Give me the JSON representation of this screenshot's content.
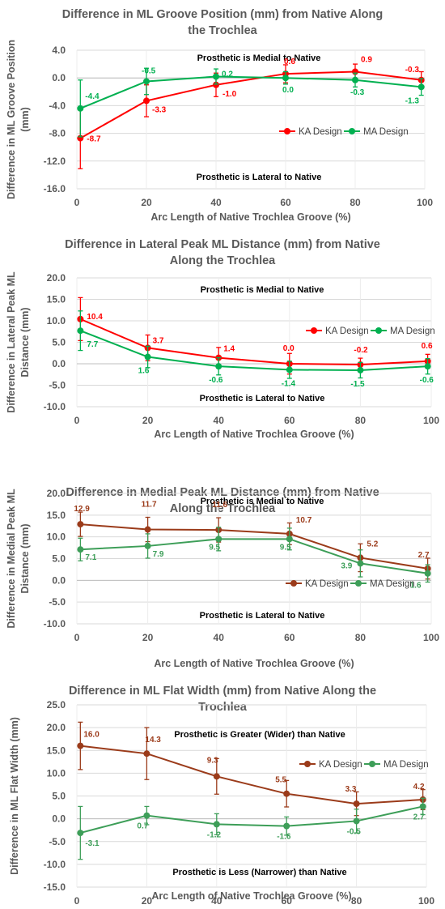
{
  "chart_data": [
    {
      "type": "line",
      "title": [
        "Difference in ML Groove Position (mm) from Native Along",
        "the Trochlea"
      ],
      "xlabel": "Arc Length of Native Trochlea Groove (%)",
      "ylabel": [
        "Difference in ML Groove Position",
        "(mm)"
      ],
      "ylim": [
        -16,
        4
      ],
      "yticks": [
        4,
        0,
        -4,
        -8,
        -12,
        -16
      ],
      "yticklabels": [
        "4.0",
        "0.0",
        "-4.0",
        "-8.0",
        "-12.0",
        "-16.0"
      ],
      "xlim": [
        0,
        100
      ],
      "xticks": [
        0,
        20,
        40,
        60,
        80,
        100
      ],
      "grid": true,
      "legend_position": "right",
      "annotations": [
        "Prosthetic is Medial to Native",
        "Prosthetic is Lateral to Native"
      ],
      "series": [
        {
          "name": "KA Design",
          "color": "#ff0000",
          "x": [
            1,
            20,
            40,
            60,
            80,
            99
          ],
          "values": [
            -8.7,
            -3.3,
            -1.0,
            0.6,
            0.9,
            -0.3
          ],
          "errors": [
            4.4,
            2.3,
            1.7,
            1.3,
            1.1,
            1.2
          ],
          "labels": [
            "-8.7",
            "-3.3",
            "-1.0",
            "0.6",
            "0.9",
            "-0.3"
          ]
        },
        {
          "name": "MA Design",
          "color": "#00b050",
          "x": [
            1,
            20,
            40,
            60,
            80,
            99
          ],
          "values": [
            -4.4,
            -0.5,
            0.2,
            0.0,
            -0.3,
            -1.3
          ],
          "errors": [
            4.1,
            1.9,
            1.1,
            0.9,
            1.0,
            1.2
          ],
          "labels": [
            "-4.4",
            "-0.5",
            "0.2",
            "0.0",
            "-0.3",
            "-1.3"
          ]
        }
      ]
    },
    {
      "type": "line",
      "title": [
        "Difference in Lateral Peak ML Distance (mm) from Native",
        "Along the Trochlea"
      ],
      "xlabel": "Arc Length of Native Trochlea Groove (%)",
      "ylabel": [
        "Difference in Lateral Peak ML",
        "Distance (mm)"
      ],
      "ylim": [
        -10,
        20
      ],
      "yticks": [
        20,
        15,
        10,
        5,
        0,
        -5,
        -10
      ],
      "yticklabels": [
        "20.0",
        "15.0",
        "10.0",
        "5.0",
        "0.0",
        "-5.0",
        "-10.0"
      ],
      "xlim": [
        0,
        100
      ],
      "xticks": [
        0,
        20,
        40,
        60,
        80,
        100
      ],
      "grid": true,
      "legend_position": "right",
      "annotations": [
        "Prosthetic is Medial to Native",
        "Prosthetic is Lateral to Native"
      ],
      "series": [
        {
          "name": "KA Design",
          "color": "#ff0000",
          "x": [
            1,
            20,
            40,
            60,
            80,
            99
          ],
          "values": [
            10.4,
            3.7,
            1.4,
            0.0,
            -0.2,
            0.6
          ],
          "errors": [
            5.0,
            3.0,
            2.4,
            2.4,
            1.5,
            1.6
          ],
          "labels": [
            "10.4",
            "3.7",
            "1.4",
            "0.0",
            "-0.2",
            "0.6"
          ]
        },
        {
          "name": "MA Design",
          "color": "#00b050",
          "x": [
            1,
            20,
            40,
            60,
            80,
            99
          ],
          "values": [
            7.7,
            1.6,
            -0.6,
            -1.4,
            -1.5,
            -0.6
          ],
          "errors": [
            4.6,
            2.5,
            2.0,
            2.0,
            1.8,
            1.8
          ],
          "labels": [
            "7.7",
            "1.6",
            "-0.6",
            "-1.4",
            "-1.5",
            "-0.6"
          ]
        }
      ]
    },
    {
      "type": "line",
      "title": [
        "Difference in Medial Peak ML Distance (mm) from Native",
        "Along the Trochlea"
      ],
      "xlabel": "Arc Length of Native Trochlea Groove (%)",
      "ylabel": [
        "Difference in Medial Peak ML",
        "Distance (mm)"
      ],
      "ylim": [
        -10,
        20
      ],
      "yticks": [
        20,
        15,
        10,
        5,
        0,
        -5,
        -10
      ],
      "yticklabels": [
        "20.0",
        "15.0",
        "10.0",
        "5.0",
        "0.0",
        "-5.0",
        "-10.0"
      ],
      "xlim": [
        0,
        100
      ],
      "xticks": [
        0,
        20,
        40,
        60,
        80,
        100
      ],
      "grid": true,
      "legend_position": "bottom-right",
      "annotations": [
        "Prosthetic is Medial to Native",
        "Prosthetic is Lateral to Native"
      ],
      "series": [
        {
          "name": "KA Design",
          "color": "#9b3b1a",
          "x": [
            1,
            20,
            40,
            60,
            80,
            99
          ],
          "values": [
            12.9,
            11.7,
            11.6,
            10.7,
            5.2,
            2.7
          ],
          "errors": [
            2.8,
            2.8,
            2.8,
            2.5,
            3.2,
            2.4
          ],
          "labels": [
            "12.9",
            "11.7",
            "11.6",
            "10.7",
            "5.2",
            "2.7"
          ]
        },
        {
          "name": "MA Design",
          "color": "#3d9e58",
          "x": [
            1,
            20,
            40,
            60,
            80,
            99
          ],
          "values": [
            7.1,
            7.9,
            9.5,
            9.5,
            3.9,
            1.6
          ],
          "errors": [
            2.6,
            2.8,
            2.7,
            2.5,
            3.1,
            2.0
          ],
          "labels": [
            "7.1",
            "7.9",
            "9.5",
            "9.5",
            "3.9",
            "1.6"
          ]
        }
      ]
    },
    {
      "type": "line",
      "title": [
        "Difference in ML Flat Width (mm) from Native Along the",
        "Trochlea"
      ],
      "xlabel": "Arc Length of Native Trochlea Groove (%)",
      "ylabel": [
        "Difference in ML Flat Width (mm)"
      ],
      "ylim": [
        -15,
        25
      ],
      "yticks": [
        25,
        20,
        15,
        10,
        5,
        0,
        -5,
        -10,
        -15
      ],
      "yticklabels": [
        "25.0",
        "20.0",
        "15.0",
        "10.0",
        "5.0",
        "0.0",
        "-5.0",
        "-10.0",
        "-15.0"
      ],
      "xlim": [
        0,
        100
      ],
      "xticks": [
        0,
        20,
        40,
        60,
        80,
        100
      ],
      "grid": true,
      "legend_position": "top-right",
      "annotations": [
        "Prosthetic is Greater (Wider) than Native",
        "Prosthetic is Less (Narrower) than Native"
      ],
      "series": [
        {
          "name": "KA Design",
          "color": "#9b3b1a",
          "x": [
            1,
            20,
            40,
            60,
            80,
            99
          ],
          "values": [
            16.0,
            14.3,
            9.3,
            5.5,
            3.3,
            4.2
          ],
          "errors": [
            5.2,
            5.7,
            3.9,
            2.9,
            2.6,
            2.2
          ],
          "labels": [
            "16.0",
            "14.3",
            "9.3",
            "5.5",
            "3.3",
            "4.2"
          ]
        },
        {
          "name": "MA Design",
          "color": "#3d9e58",
          "x": [
            1,
            20,
            40,
            60,
            80,
            99
          ],
          "values": [
            -3.1,
            0.7,
            -1.2,
            -1.6,
            -0.5,
            2.7
          ],
          "errors": [
            5.8,
            2.0,
            2.3,
            2.0,
            2.6,
            1.8
          ],
          "labels": [
            "-3.1",
            "0.7",
            "-1.2",
            "-1.6",
            "-0.5",
            "2.7"
          ]
        }
      ]
    }
  ]
}
